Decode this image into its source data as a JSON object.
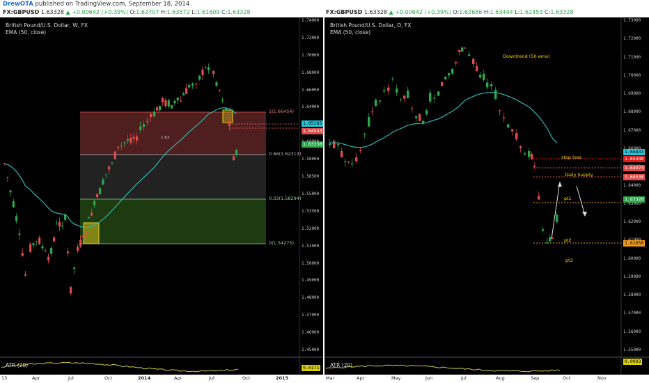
{
  "header": {
    "user": "DrewOTA",
    "published": "published on TradingView.com, September 18, 2014"
  },
  "left": {
    "symbol": "FX:GBPUSD",
    "last": "1.63328",
    "change": "+0.00642 (+0.39%)",
    "o_label": "O:",
    "o": "1.62707",
    "h_label": "H:",
    "h": "1.63572",
    "l_label": "L:",
    "l": "1.61609",
    "c_label": "C:",
    "c": "1.63328",
    "title": "British Pound/U.S. Dollar, W, FX",
    "indicator": "EMA (50, close)",
    "atr": "ATR (20)",
    "atr_value": "0.0171",
    "fib": [
      {
        "label": "1(1.66454)",
        "price": 1.66454
      },
      {
        "label": "0.66(1.62313)",
        "price": 1.62313
      },
      {
        "label": "0.33(1.58294)",
        "price": 1.58294
      },
      {
        "label": "0(1.54275)",
        "price": 1.54275
      }
    ],
    "ann_left": "1.63",
    "y_ticks": [
      "1.74000",
      "1.72000",
      "1.70000",
      "1.68000",
      "1.66000",
      "1.64000",
      "1.62000",
      "1.60000",
      "1.58000",
      "1.56500",
      "1.55000",
      "1.53500",
      "1.52000",
      "1.51000",
      "1.50000",
      "1.49000",
      "1.48000",
      "1.47000",
      "1.46000",
      "1.45000"
    ],
    "price_tags": [
      {
        "text": "1.65183",
        "color": "#27c6d8",
        "fg": "#000"
      },
      {
        "text": "1.64543",
        "color": "#e04b4b",
        "fg": "#fff"
      },
      {
        "text": "1.63330",
        "color": "#2ba84a",
        "fg": "#fff"
      }
    ],
    "x_labels": [
      "13",
      "Apr",
      "Jul",
      "Oct",
      "2014",
      "Apr",
      "Jul",
      "Oct",
      "2015"
    ]
  },
  "right": {
    "symbol": "FX:GBPUSD",
    "last": "1.63328",
    "change": "+0.00642 (+0.39%)",
    "o_label": "O:",
    "o": "1.62686",
    "h_label": "H:",
    "h": "1.63444",
    "l_label": "L:",
    "l": "1.62453",
    "c_label": "C:",
    "c": "1.63328",
    "title": "British Pound/U.S. Dollar, D, FX",
    "indicator": "EMA (50, close)",
    "atr": "ATR (20)",
    "atr_value": "0.0093",
    "ann_downtrend": "Downtrend (50 ema)",
    "ann_stoploss": "stop loss",
    "ann_supply": "Daily Supply",
    "ann_pt1": "pt1",
    "ann_pt2": "pt2",
    "ann_pt3": "pt3",
    "y_ticks": [
      "1.73000",
      "1.72000",
      "1.71000",
      "1.70000",
      "1.69000",
      "1.68000",
      "1.67000",
      "1.66000",
      "1.65000",
      "1.64000",
      "1.63000",
      "1.62000",
      "1.61000",
      "1.60000",
      "1.59000",
      "1.58000",
      "1.57000",
      "1.56000",
      "1.55000"
    ],
    "price_tags": [
      {
        "text": "1.66833",
        "color": "#27c6d8",
        "fg": "#000"
      },
      {
        "text": "1.65440",
        "color": "#e01b1b",
        "fg": "#fff"
      },
      {
        "text": "1.64973",
        "color": "#e04b4b",
        "fg": "#fff"
      },
      {
        "text": "1.64530",
        "color": "#e04b4b",
        "fg": "#fff"
      },
      {
        "text": "1.63328",
        "color": "#2ba84a",
        "fg": "#fff"
      },
      {
        "text": "1.61050",
        "color": "#f29a1a",
        "fg": "#000"
      }
    ],
    "x_labels": [
      "Mar",
      "Apr",
      "May",
      "Jun",
      "Jul",
      "Aug",
      "Sep",
      "Oct",
      "Nov"
    ]
  },
  "colors": {
    "up": "#2ba84a",
    "down": "#e04b4b",
    "ema": "#2fb8b0",
    "annotation": "#ffd400",
    "fib_top": "#7a2f2f",
    "fib_mid": "#1f1f1f",
    "fib_bottom": "#1d3a10"
  }
}
